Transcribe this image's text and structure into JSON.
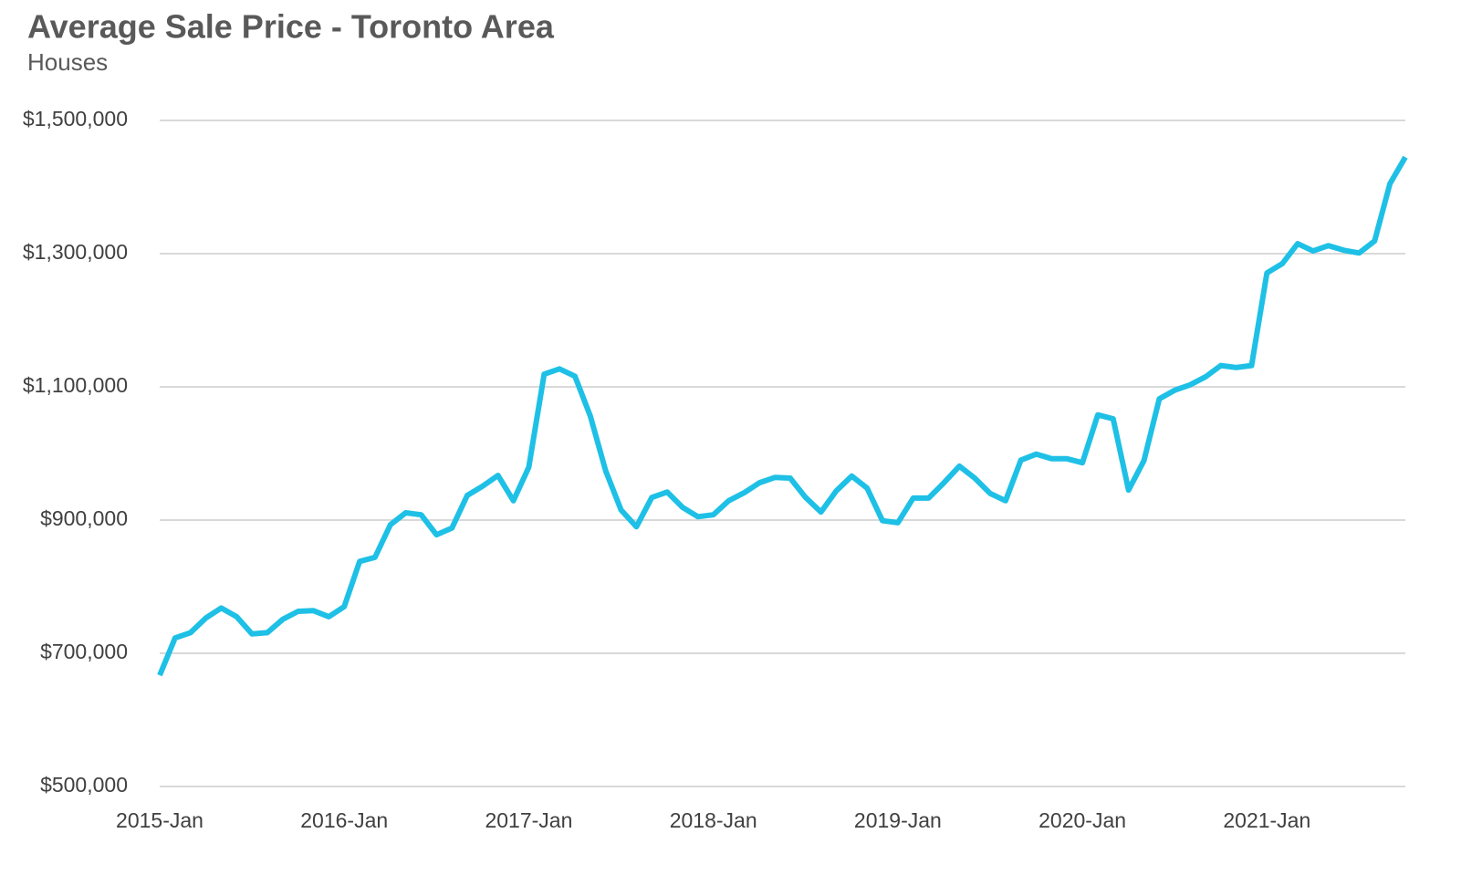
{
  "chart_data": {
    "type": "line",
    "title": "Average Sale Price - Toronto Area",
    "subtitle": "Houses",
    "categories": [
      "2015-Jan",
      null,
      null,
      null,
      null,
      null,
      null,
      null,
      null,
      null,
      null,
      null,
      "2016-Jan",
      null,
      null,
      null,
      null,
      null,
      null,
      null,
      null,
      null,
      null,
      null,
      "2017-Jan",
      null,
      null,
      null,
      null,
      null,
      null,
      null,
      null,
      null,
      null,
      null,
      "2018-Jan",
      null,
      null,
      null,
      null,
      null,
      null,
      null,
      null,
      null,
      null,
      null,
      "2019-Jan",
      null,
      null,
      null,
      null,
      null,
      null,
      null,
      null,
      null,
      null,
      null,
      "2020-Jan",
      null,
      null,
      null,
      null,
      null,
      null,
      null,
      null,
      null,
      null,
      null,
      "2021-Jan",
      null,
      null,
      null,
      null,
      null,
      null,
      null,
      null,
      null
    ],
    "values": [
      667000,
      723000,
      731000,
      753000,
      768000,
      755000,
      729000,
      731000,
      751000,
      763000,
      764000,
      755000,
      770000,
      838000,
      844000,
      893000,
      911000,
      908000,
      878000,
      888000,
      937000,
      951000,
      967000,
      929000,
      979000,
      1119000,
      1127000,
      1116000,
      1056000,
      974000,
      915000,
      890000,
      934000,
      942000,
      919000,
      905000,
      908000,
      929000,
      941000,
      956000,
      964000,
      963000,
      934000,
      912000,
      944000,
      966000,
      948000,
      899000,
      896000,
      933000,
      933000,
      956000,
      981000,
      963000,
      940000,
      929000,
      990000,
      999000,
      992000,
      992000,
      986000,
      1058000,
      1052000,
      945000,
      989000,
      1082000,
      1095000,
      1103000,
      1115000,
      1132000,
      1129000,
      1132000,
      1271000,
      1285000,
      1315000,
      1304000,
      1312000,
      1305000,
      1301000,
      1319000,
      1405000,
      1445000
    ],
    "color": "#1ec0e6",
    "ylim": [
      500000,
      1500000
    ],
    "yticks": [
      {
        "value": 500000,
        "label": "$500,000"
      },
      {
        "value": 700000,
        "label": "$700,000"
      },
      {
        "value": 900000,
        "label": "$900,000"
      },
      {
        "value": 1100000,
        "label": "$1,100,000"
      },
      {
        "value": 1300000,
        "label": "$1,300,000"
      },
      {
        "value": 1500000,
        "label": "$1,500,000"
      }
    ],
    "grid": true
  }
}
